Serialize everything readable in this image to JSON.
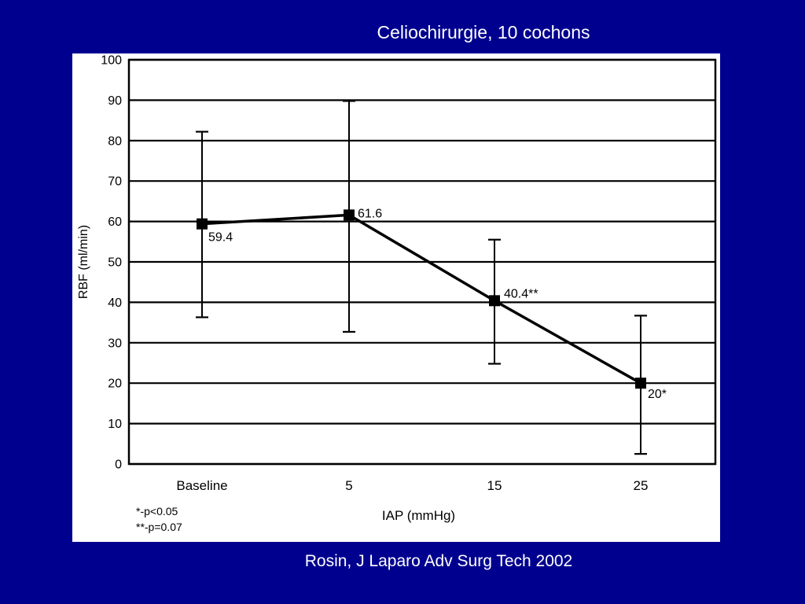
{
  "slide": {
    "title": "Celiochirurgie, 10 cochons",
    "source": "Rosin, J Laparo Adv Surg Tech 2002"
  },
  "chart_data": {
    "type": "line",
    "categories": [
      "Baseline",
      "5",
      "15",
      "25"
    ],
    "series": [
      {
        "values": [
          59.4,
          61.6,
          40.4,
          20
        ],
        "error_low": [
          36.3,
          32.7,
          24.8,
          2.5
        ],
        "error_high": [
          82.2,
          89.8,
          55.5,
          36.7
        ],
        "point_labels": [
          "59.4",
          "61.6",
          "40.4**",
          "20*"
        ]
      }
    ],
    "xlabel": "IAP (mmHg)",
    "ylabel": "RBF (ml/min)",
    "ylim": [
      0,
      100
    ],
    "yticks": [
      0,
      10,
      20,
      30,
      40,
      50,
      60,
      70,
      80,
      90,
      100
    ],
    "grid": true,
    "legend": "none",
    "colors": {
      "line": "#000000",
      "background": "#ffffff",
      "slide": "#00008f"
    }
  },
  "footnotes": [
    "*-p<0.05",
    "**-p=0.07"
  ]
}
